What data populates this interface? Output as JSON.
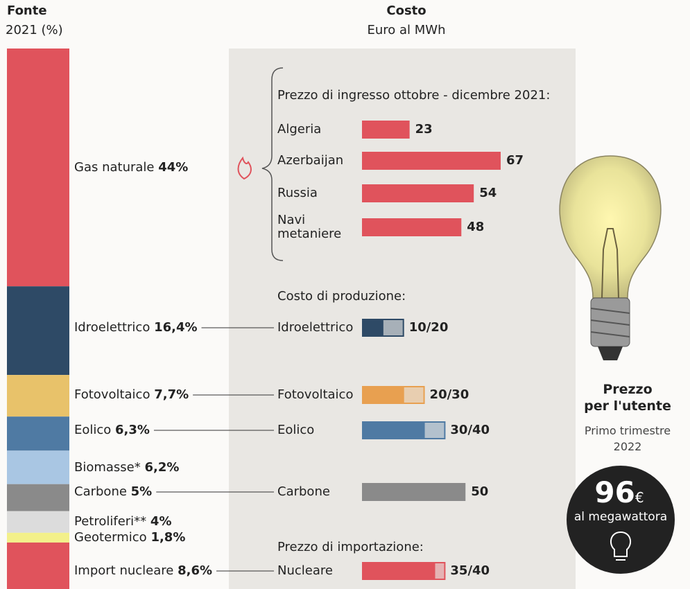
{
  "chart_data": [
    {
      "type": "stacked_bar",
      "title": "Fonte",
      "subtitle": "2021 (%)",
      "categories": [
        "Gas naturale",
        "Idroelettrico",
        "Fotovoltaico",
        "Eolico",
        "Biomasse*",
        "Carbone",
        "Petroliferi**",
        "Geotermico",
        "Import nucleare"
      ],
      "values": [
        44,
        16.4,
        7.7,
        6.3,
        6.2,
        5,
        4,
        1.8,
        8.6
      ],
      "value_labels": [
        "44%",
        "16,4%",
        "7,7%",
        "6,3%",
        "6,2%",
        "5%",
        "4%",
        "1,8%",
        "8,6%"
      ],
      "colors": [
        "#e0535c",
        "#2e4a66",
        "#e8c26a",
        "#4f7aa3",
        "#a9c6e3",
        "#8a8a8a",
        "#dcdcdc",
        "#f3f08a",
        "#e0535c"
      ]
    },
    {
      "type": "bar",
      "title": "Costo",
      "subtitle": "Euro al MWh",
      "groups": [
        {
          "title": "Prezzo di ingresso ottobre - dicembre 2021:",
          "categories": [
            "Algeria",
            "Azerbaijan",
            "Russia",
            "Navi metaniere"
          ],
          "values": [
            23,
            67,
            54,
            48
          ],
          "lows": [
            null,
            null,
            null,
            null
          ],
          "value_labels": [
            "23",
            "67",
            "54",
            "48"
          ],
          "colors": [
            "#e0535c",
            "#e0535c",
            "#e0535c",
            "#e0535c"
          ]
        },
        {
          "title": "Costo di produzione:",
          "categories": [
            "Idroelettrico",
            "Fotovoltaico",
            "Eolico",
            "Carbone"
          ],
          "values": [
            20,
            30,
            40,
            50
          ],
          "lows": [
            10,
            20,
            30,
            null
          ],
          "value_labels": [
            "10/20",
            "20/30",
            "30/40",
            "50"
          ],
          "colors": [
            "#2e4a66",
            "#e8a050",
            "#4f7aa3",
            "#8a8a8a"
          ]
        },
        {
          "title": "Prezzo di importazione:",
          "categories": [
            "Nucleare"
          ],
          "values": [
            40
          ],
          "lows": [
            35
          ],
          "value_labels": [
            "35/40"
          ],
          "colors": [
            "#e0535c"
          ]
        }
      ]
    }
  ],
  "price_panel": {
    "title_lines": [
      "Prezzo",
      "per l'utente"
    ],
    "subtitle": "Primo trimestre 2022",
    "price": 96,
    "currency": "€",
    "unit": "al megawattora"
  }
}
